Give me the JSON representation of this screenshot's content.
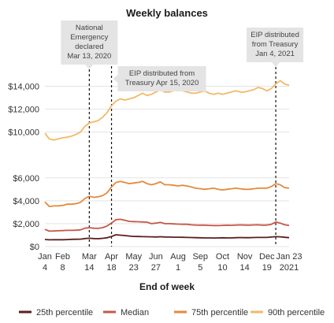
{
  "chart_data": {
    "type": "line",
    "title": "Weekly balances",
    "xlabel": "End of week",
    "ylabel": "",
    "ylim": [
      0,
      15000
    ],
    "grid": true,
    "legend_position": "bottom",
    "y_ticks": [
      {
        "value": 0,
        "label": "$0"
      },
      {
        "value": 2000,
        "label": "$2,000"
      },
      {
        "value": 4000,
        "label": "$4,000"
      },
      {
        "value": 6000,
        "label": "$6,000"
      },
      {
        "value": 10000,
        "label": "$10,000"
      },
      {
        "value": 12000,
        "label": "$12,000"
      },
      {
        "value": 14000,
        "label": "$14,000"
      }
    ],
    "x_ticks": [
      {
        "week": 0,
        "line1": "Jan",
        "line2": "4"
      },
      {
        "week": 4,
        "line1": "Feb",
        "line2": "8"
      },
      {
        "week": 10,
        "line1": "Mar",
        "line2": "14"
      },
      {
        "week": 15,
        "line1": "Apr",
        "line2": "18"
      },
      {
        "week": 20,
        "line1": "May",
        "line2": "23"
      },
      {
        "week": 25,
        "line1": "Jun",
        "line2": "27"
      },
      {
        "week": 30,
        "line1": "Aug",
        "line2": "1"
      },
      {
        "week": 35,
        "line1": "Sep",
        "line2": "5"
      },
      {
        "week": 40,
        "line1": "Oct",
        "line2": "10"
      },
      {
        "week": 45,
        "line1": "Nov",
        "line2": "14"
      },
      {
        "week": 50,
        "line1": "Dec",
        "line2": "19"
      },
      {
        "week": 55,
        "line1": "Jan 23",
        "line2": "2021"
      }
    ],
    "annotations": [
      {
        "week": 10,
        "text": [
          "National",
          "Emergency",
          "declared",
          "Mar 13, 2020"
        ]
      },
      {
        "week": 15,
        "text": [
          "EIP distributed from",
          "Treasury Apr 15, 2020"
        ]
      },
      {
        "week": 52,
        "text": [
          "EIP distributed",
          "from Treasury",
          "Jan 4, 2021"
        ]
      }
    ],
    "series": [
      {
        "name": "25th percentile",
        "color": "#5a1f1f",
        "values": [
          620,
          590,
          600,
          600,
          600,
          610,
          630,
          640,
          650,
          700,
          730,
          700,
          690,
          720,
          770,
          880,
          1030,
          1000,
          960,
          920,
          890,
          880,
          870,
          860,
          850,
          840,
          860,
          840,
          830,
          820,
          820,
          810,
          800,
          790,
          780,
          770,
          760,
          760,
          750,
          760,
          770,
          760,
          760,
          780,
          790,
          780,
          780,
          790,
          800,
          800,
          800,
          830,
          870,
          850,
          810,
          780
        ]
      },
      {
        "name": "Median",
        "color": "#c65848",
        "values": [
          1500,
          1350,
          1360,
          1380,
          1400,
          1420,
          1420,
          1430,
          1460,
          1600,
          1650,
          1600,
          1590,
          1650,
          1800,
          2050,
          2350,
          2380,
          2300,
          2200,
          2180,
          2170,
          2150,
          2130,
          2000,
          2050,
          2120,
          2000,
          2000,
          1980,
          1960,
          1950,
          1950,
          1900,
          1880,
          1870,
          1870,
          1850,
          1840,
          1830,
          1850,
          1870,
          1860,
          1880,
          1890,
          1880,
          1870,
          1890,
          1900,
          1870,
          1880,
          1950,
          2150,
          2050,
          1900,
          1850
        ]
      },
      {
        "name": "75th percentile",
        "color": "#e48a3c",
        "values": [
          3900,
          3500,
          3550,
          3550,
          3600,
          3700,
          3700,
          3750,
          3850,
          4200,
          4400,
          4300,
          4350,
          4450,
          4700,
          5200,
          5600,
          5700,
          5600,
          5500,
          5550,
          5600,
          5700,
          5500,
          5400,
          5500,
          5650,
          5400,
          5400,
          5350,
          5300,
          5350,
          5300,
          5200,
          5100,
          5050,
          5000,
          5050,
          5100,
          5000,
          4950,
          5000,
          5050,
          5100,
          5050,
          5000,
          5000,
          5050,
          5100,
          5100,
          5100,
          5250,
          5500,
          5400,
          5150,
          5100
        ]
      },
      {
        "name": "90th percentile",
        "color": "#f2b968",
        "values": [
          9900,
          9400,
          9300,
          9400,
          9500,
          9550,
          9650,
          9800,
          10000,
          10500,
          10800,
          10900,
          11000,
          11300,
          11700,
          12300,
          12700,
          12900,
          12800,
          12900,
          13000,
          13200,
          13400,
          13200,
          13300,
          13500,
          13700,
          13500,
          13500,
          13600,
          13700,
          13600,
          13500,
          13400,
          13400,
          13500,
          13600,
          13400,
          13300,
          13400,
          13300,
          13400,
          13500,
          13600,
          13500,
          13500,
          13600,
          13700,
          13900,
          13800,
          13600,
          13800,
          14200,
          14500,
          14200,
          14100
        ]
      }
    ]
  }
}
